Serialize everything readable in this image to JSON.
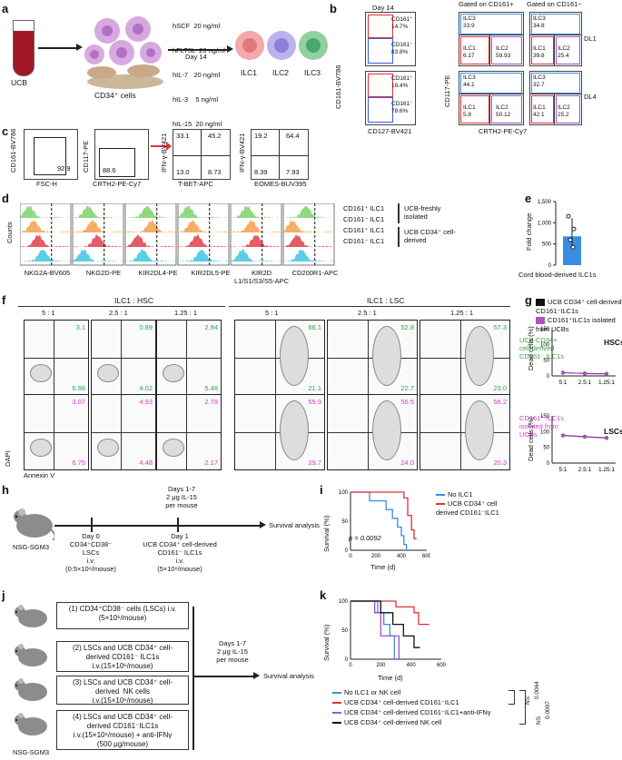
{
  "panel_letters": [
    "a",
    "b",
    "c",
    "d",
    "e",
    "f",
    "g",
    "h",
    "i",
    "j",
    "k"
  ],
  "a": {
    "cytokines": [
      "hSCF  20 ng/ml",
      "hFLT3L  20 ng/ml",
      "hIL-7   20 ng/ml",
      "hIL-3    5 ng/ml",
      "hIL-15  20 ng/ml"
    ],
    "day": "Day 14",
    "ucb": "UCB",
    "cd34": "CD34⁺ cells",
    "outputs": [
      "ILC1",
      "ILC2",
      "ILC3"
    ]
  },
  "b": {
    "day": "Day 14",
    "gated_pos": "Gated on CD161+",
    "gated_neg": "Gated on CD161−",
    "row1": {
      "cd161pos": "CD161⁺\n14.7%",
      "cd161neg": "CD161⁻\n83.8%",
      "pos": {
        "ilc3": "ILC3\n33.9",
        "ilc1": "ILC1\n6.17",
        "ilc2": "ILC2\n59.93"
      },
      "neg": {
        "ilc3": "ILC3\n34.8",
        "ilc1": "ILC1\n39.8",
        "ilc2": "ILC2\n25.4"
      },
      "tag": "DL1"
    },
    "row2": {
      "cd161pos": "CD161⁺\n19.4%",
      "cd161neg": "CD161⁻\n78.6%",
      "pos": {
        "ilc3": "ILC3\n44.1",
        "ilc1": "ILC1\n5.8",
        "ilc2": "ILC2\n50.12"
      },
      "neg": {
        "ilc3": "ILC3\n32.7",
        "ilc1": "ILC1\n42.1",
        "ilc2": "ILC2\n25.2"
      },
      "tag": "DL4"
    },
    "x_axis": "CD127-BV421",
    "y_axis": "CD161-BV786",
    "x_axis2": "CRTH2-PE-Cy7",
    "y_axis2": "CD117-PE"
  },
  "c": {
    "plots": [
      {
        "x": "FSC-H",
        "y": "CD161-BV786",
        "vals": [
          "92.9"
        ]
      },
      {
        "x": "CRTH2-PE-Cy7",
        "y": "CD117-PE",
        "vals": [
          "88.6"
        ]
      },
      {
        "x": "T-BET-APC",
        "y": "IFN-γ-BV421",
        "vals": [
          "33.1",
          "45.2",
          "13.0",
          "8.73"
        ]
      },
      {
        "x": "EOMES-BUV395",
        "y": "IFN-γ-BV421",
        "vals": [
          "19.2",
          "64.4",
          "8.39",
          "7.93"
        ]
      }
    ]
  },
  "d": {
    "y_axis": "Counts",
    "markers": [
      "NKG2A-BV605",
      "NKG2D-PE",
      "KIR2DL4-PE",
      "KIR2DL5-PE",
      "KIR2D\nL1/S1/S3/S5-APC",
      "CD200R1-APC"
    ],
    "legend": [
      "CD161⁺ ILC1",
      "CD161⁻ ILC1",
      "CD161⁺ ILC1",
      "CD161⁻ ILC1"
    ],
    "group1": "UCB-freshly\nisolated",
    "group2": "UCB CD34⁺ cell-\nderived",
    "colors": [
      "#7bd36a",
      "#f2a04a",
      "#e0404a",
      "#3ec6e0"
    ]
  },
  "e": {
    "ylabel": "Fold change",
    "xlabel": "Cord blood-derived ILC1s",
    "ticks": [
      "0",
      "500",
      "1,000",
      "1,500"
    ],
    "mean": 680
  },
  "f": {
    "head_hsc": "ILC1 : HSC",
    "head_lsc": "ILC1 : LSC",
    "ratios": [
      "5 : 1",
      "2.5 : 1",
      "1.25 : 1"
    ],
    "row1": [
      [
        "3.1",
        "6.98"
      ],
      [
        "0.89",
        "4.02"
      ],
      [
        "2.94",
        "5.46"
      ],
      [
        "66.1",
        "21.1"
      ],
      [
        "52.8",
        "22.7"
      ],
      [
        "57.3",
        "23.0"
      ]
    ],
    "row2": [
      [
        "3.07",
        "6.75"
      ],
      [
        "4.93",
        "4.48"
      ],
      [
        "2.79",
        "2.17"
      ],
      [
        "55.9",
        "29.7"
      ],
      [
        "56.5",
        "24.0"
      ],
      [
        "56.2",
        "20.3"
      ]
    ],
    "row1_label": "UCB CD34+\ncell-derived\nCD161⁻ ILC1s",
    "row2_label": "CD161⁺ ILC1s\nisolated from\nUCBs",
    "x_axis": "Annexin V",
    "y_axis": "DAPI"
  },
  "g": {
    "legend": [
      "UCB CD34⁺ cell-derived CD161⁻ILC1s",
      "CD161⁺ILC1s isolated from UCBs"
    ],
    "hsc": "HSCs",
    "lsc": "LSCs",
    "ylabel": "Dead cells (%)",
    "ticks": [
      "0",
      "50",
      "100",
      "150"
    ],
    "xcats": [
      "5:1",
      "2.5:1",
      "1.25:1"
    ],
    "hsc_s1": [
      10,
      8,
      7
    ],
    "hsc_s2": [
      11,
      7,
      6
    ],
    "lsc_s1": [
      88,
      84,
      80
    ],
    "lsc_s2": [
      87,
      83,
      79
    ]
  },
  "h": {
    "mouse": "NSG-SGM3",
    "day0": "Day 0\nCD34⁺CD38⁻\nLSCs\ni.v.\n(0.5×10⁶/mouse)",
    "day1": "Day 1\nUCB CD34⁺ cell-derived\nCD161⁻ ILC1s\ni.v.\n(5×10⁶/mouse)",
    "top": "Days 1-7\n2 μg IL-15\nper mouse",
    "end": "Survival analysis"
  },
  "i": {
    "ylabel": "Survival (%)",
    "xlabel": "Time (d)",
    "pval": "p = 0.0092",
    "legend": [
      "No ILC1",
      "UCB CD34⁺ cell\nderived CD161⁻ILC1"
    ],
    "xticks": [
      "0",
      "200",
      "400",
      "600"
    ],
    "yticks": [
      "0",
      "50",
      "100"
    ]
  },
  "j": {
    "mouse": "NSG-SGM3",
    "groups": [
      "(1) CD34⁺CD38⁻ cells (LSCs) i.v.\n(5×10⁶/mouse)",
      "(2) LSCs and UCB CD34⁺ cell-\nderived CD161⁻ ILC1s\ni.v.(15×10⁶/mouse)",
      "(3) LSCs and UCB CD34⁺ cell-\nderived  NK cells\ni.v.(15×10⁶/mouse)",
      "(4) LSCs and UCB CD34⁺ cell-\nderived CD161⁻ILC1s\ni.v.(15×10⁶/mouse) + anti-IFNγ\n(500 μg/mouse)"
    ],
    "top": "Days 1-7\n2 μg IL-15\nper mouse",
    "end": "Survival analysis"
  },
  "k": {
    "ylabel": "Survival (%)",
    "xlabel": "Time (d)",
    "xticks": [
      "0",
      "200",
      "400",
      "600"
    ],
    "yticks": [
      "0",
      "50",
      "100"
    ],
    "legend": [
      "No ILC1 or NK cell",
      "UCB CD34⁺ cell-derived CD161⁻ILC1",
      "UCB CD34⁺ cell-derived CD161⁻ILC1+anti-IFNγ",
      "UCB CD34⁺ cell-derived NK cell"
    ],
    "legend_colors": [
      "#3a8de0",
      "#e0303a",
      "#a050d0",
      "#111111"
    ],
    "stats": [
      "0.0064",
      "NS",
      "0.0007",
      "NS"
    ]
  }
}
